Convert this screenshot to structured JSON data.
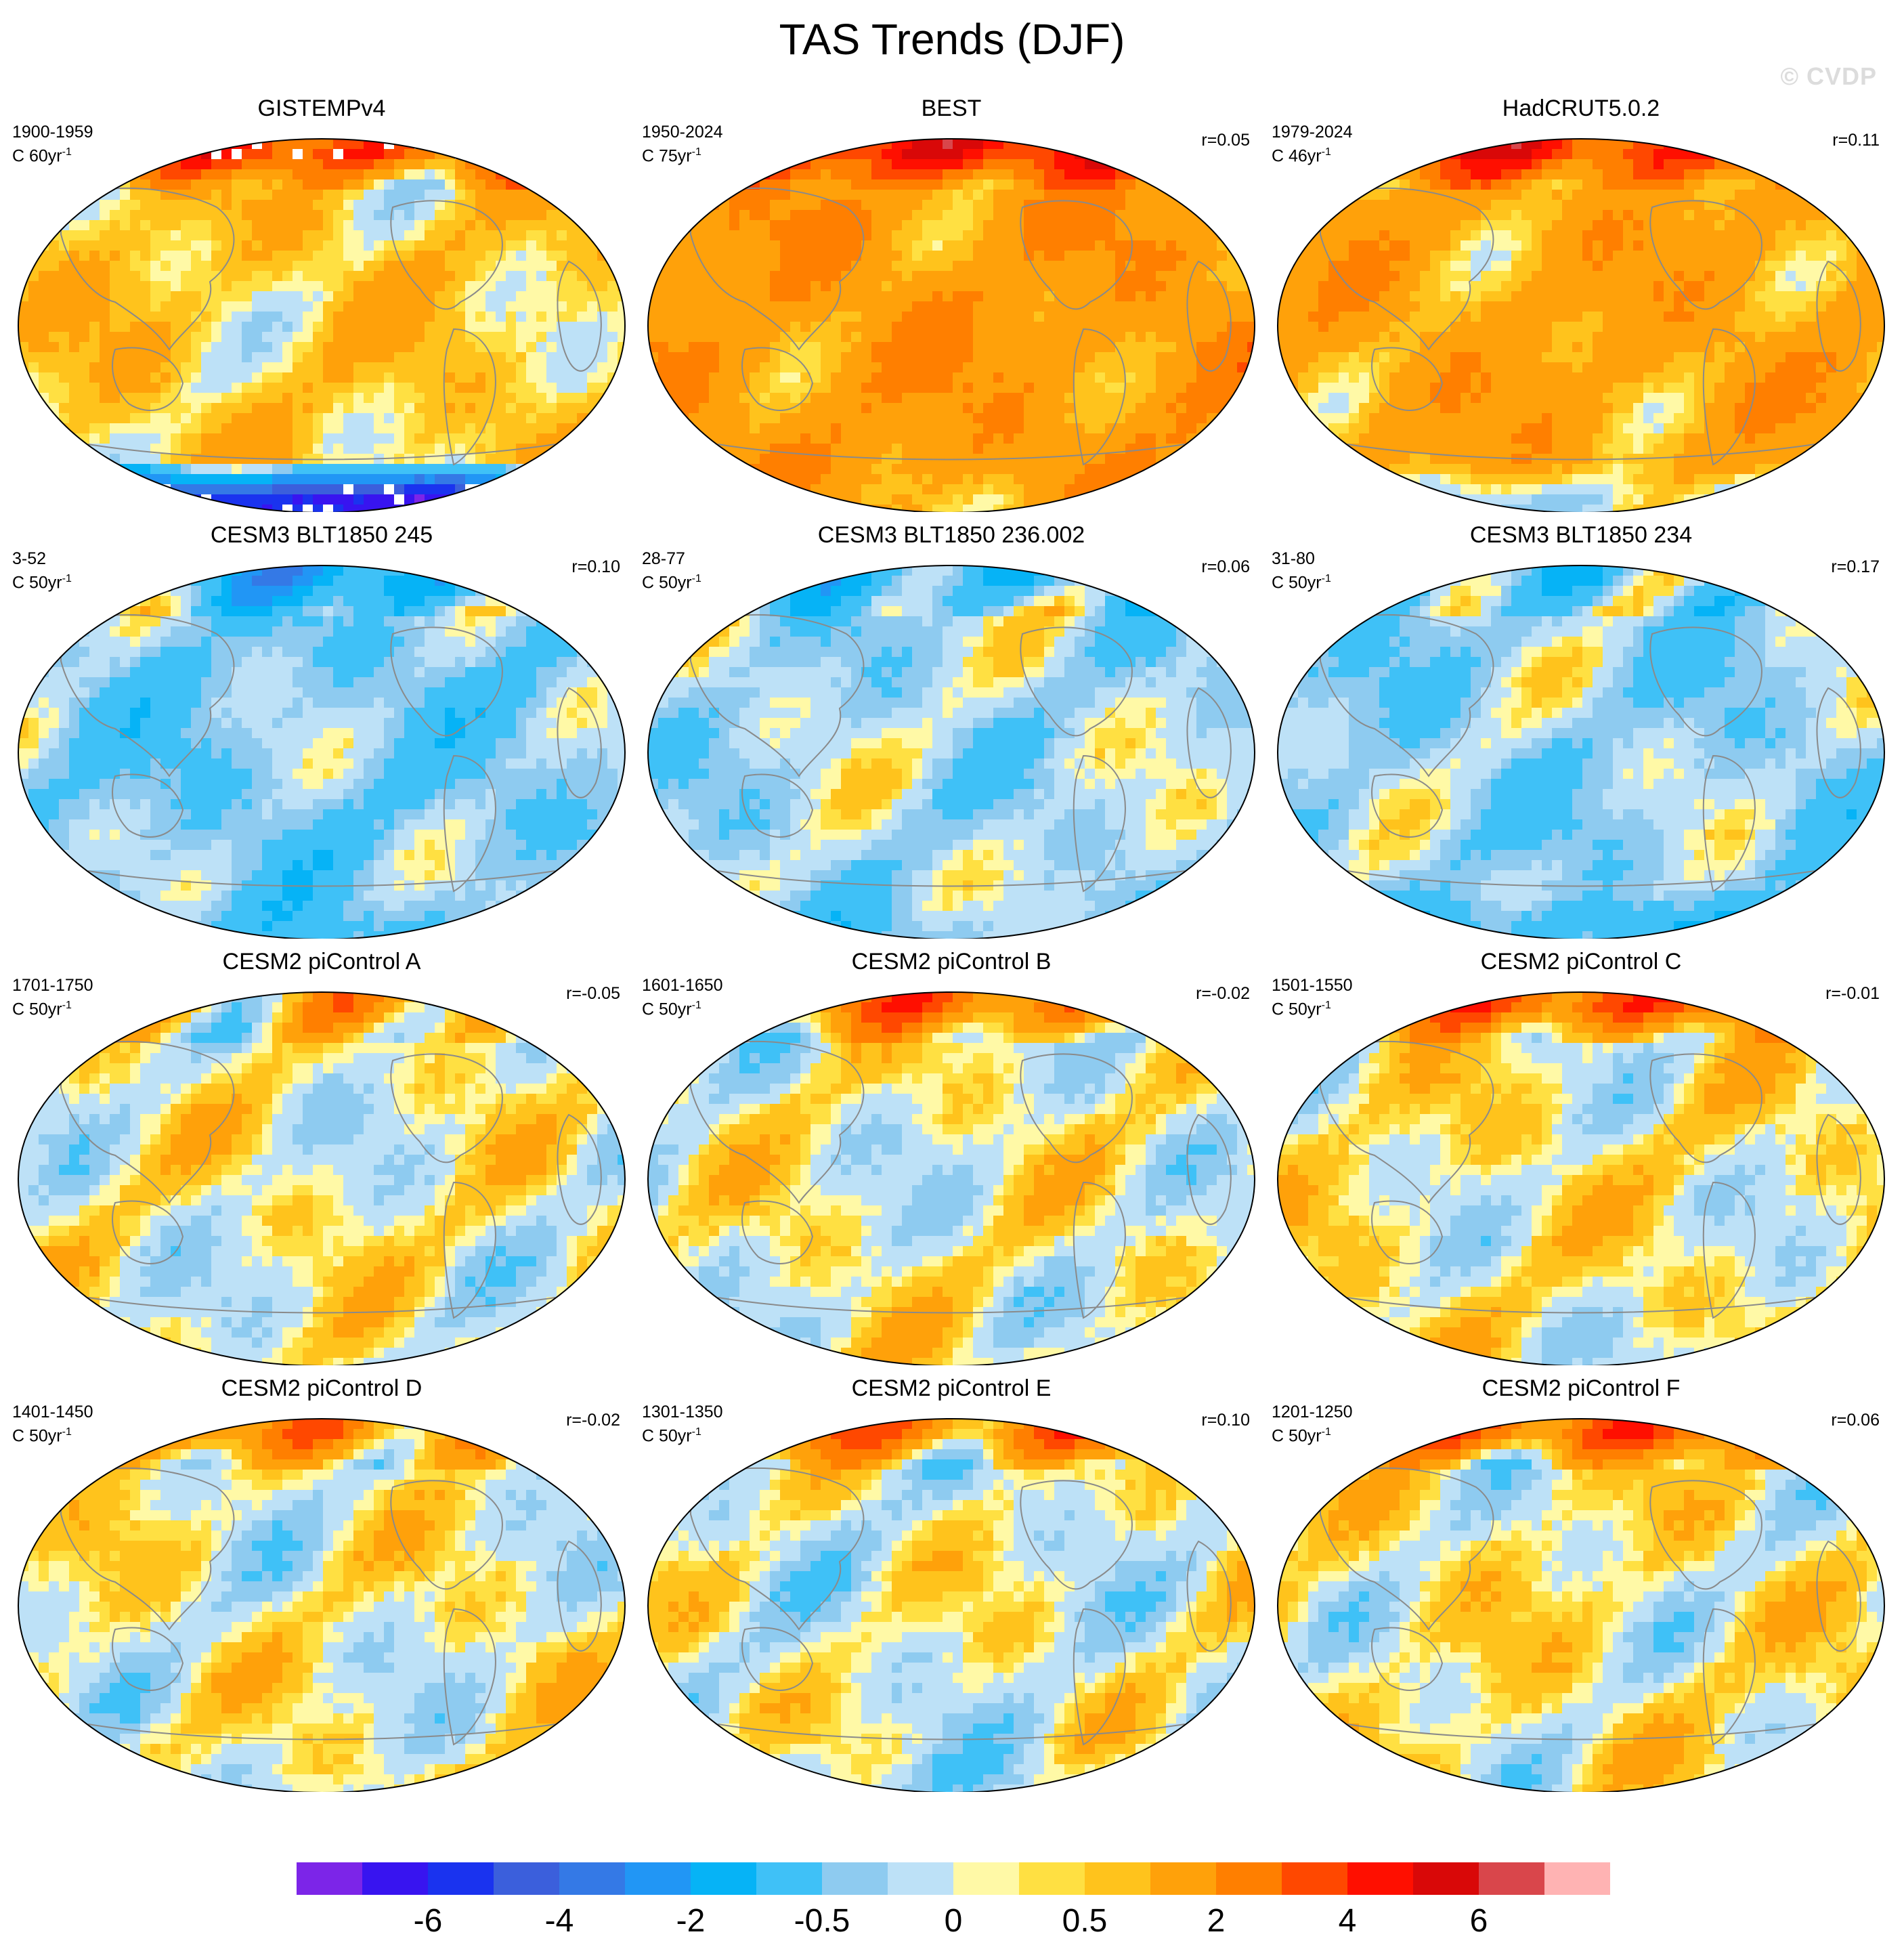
{
  "title": "TAS Trends (DJF)",
  "watermark": "© CVDP",
  "chart_data": {
    "type": "heatmap",
    "title": "TAS Trends (DJF)",
    "description_type": "global map panels of surface air temperature trend (C per period), Hammer/Robinson projection centered on the Pacific",
    "panels": [
      {
        "title": "GISTEMPv4",
        "period": "1900-1959",
        "units_base": "C 60yr",
        "units_exp": "-1",
        "r": "",
        "dominant": 0.6,
        "arctic": 3.5,
        "antarctic": -7,
        "missing_poles": true
      },
      {
        "title": "BEST",
        "period": "1950-2024",
        "units_base": "C 75yr",
        "units_exp": "-1",
        "r": "r=0.05",
        "dominant": 1.6,
        "arctic": 4.5,
        "antarctic": 1.2
      },
      {
        "title": "HadCRUT5.0.2",
        "period": "1979-2024",
        "units_base": "C 46yr",
        "units_exp": "-1",
        "r": "r=0.11",
        "dominant": 1.3,
        "arctic": 4.0,
        "antarctic": -0.3
      },
      {
        "title": "CESM3 BLT1850 245",
        "period": "3-52",
        "units_base": "C 50yr",
        "units_exp": "-1",
        "r": "r=0.10",
        "dominant": -0.8,
        "arctic": -2.5,
        "antarctic": -1.2
      },
      {
        "title": "CESM3 BLT1850 236.002",
        "period": "28-77",
        "units_base": "C 50yr",
        "units_exp": "-1",
        "r": "r=0.06",
        "dominant": -0.4,
        "arctic": -1.5,
        "antarctic": -0.8
      },
      {
        "title": "CESM3 BLT1850 234",
        "period": "31-80",
        "units_base": "C 50yr",
        "units_exp": "-1",
        "r": "r=0.17",
        "dominant": -0.6,
        "arctic": -1.0,
        "antarctic": -1.6
      },
      {
        "title": "CESM2 piControl A",
        "period": "1701-1750",
        "units_base": "C 50yr",
        "units_exp": "-1",
        "r": "r=-0.05",
        "dominant": 0.1,
        "arctic": 1.0,
        "antarctic": 0.2
      },
      {
        "title": "CESM2 piControl B",
        "period": "1601-1650",
        "units_base": "C 50yr",
        "units_exp": "-1",
        "r": "r=-0.02",
        "dominant": 0.1,
        "arctic": 2.5,
        "antarctic": 0.3
      },
      {
        "title": "CESM2 piControl C",
        "period": "1501-1550",
        "units_base": "C 50yr",
        "units_exp": "-1",
        "r": "r=-0.01",
        "dominant": 0.2,
        "arctic": 3.0,
        "antarctic": 0.1
      },
      {
        "title": "CESM2 piControl D",
        "period": "1401-1450",
        "units_base": "C 50yr",
        "units_exp": "-1",
        "r": "r=-0.02",
        "dominant": 0.1,
        "arctic": 2.0,
        "antarctic": 0.1
      },
      {
        "title": "CESM2 piControl E",
        "period": "1301-1350",
        "units_base": "C 50yr",
        "units_exp": "-1",
        "r": "r=0.10",
        "dominant": 0.0,
        "arctic": 2.5,
        "antarctic": -0.5
      },
      {
        "title": "CESM2 piControl F",
        "period": "1201-1250",
        "units_base": "C 50yr",
        "units_exp": "-1",
        "r": "r=0.06",
        "dominant": 0.2,
        "arctic": 3.0,
        "antarctic": 0.2
      }
    ],
    "colorbar": {
      "colors": [
        "#7c25e8",
        "#3814f0",
        "#1a33ef",
        "#3b5fdc",
        "#3479e6",
        "#2196f5",
        "#06b3f6",
        "#3fc1f7",
        "#8ecbf0",
        "#bde1f7",
        "#fff9a6",
        "#ffe042",
        "#ffc31c",
        "#ffa10a",
        "#ff7f00",
        "#ff4800",
        "#ff0f00",
        "#d90808",
        "#d9464b",
        "#ffb3b3"
      ],
      "labels": [
        "-6",
        "-4",
        "-2",
        "-0.5",
        "0",
        "0.5",
        "2",
        "4",
        "6"
      ]
    }
  }
}
